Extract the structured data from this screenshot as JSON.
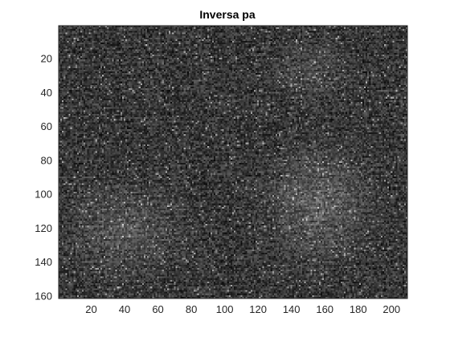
{
  "figure": {
    "title": "Inversa pa"
  },
  "chart_data": {
    "type": "heatmap",
    "title": "Inversa pa",
    "xlabel": "",
    "ylabel": "",
    "colormap": "gray",
    "xlim": [
      0.5,
      209.5
    ],
    "ylim": [
      0.5,
      161.5
    ],
    "y_reversed": true,
    "x_ticks": [
      20,
      40,
      60,
      80,
      100,
      120,
      140,
      160,
      180,
      200
    ],
    "y_ticks": [
      20,
      40,
      60,
      80,
      100,
      120,
      140,
      160
    ],
    "grid": false,
    "colors": {
      "axis": "#262626",
      "background": "#ffffff"
    }
  }
}
